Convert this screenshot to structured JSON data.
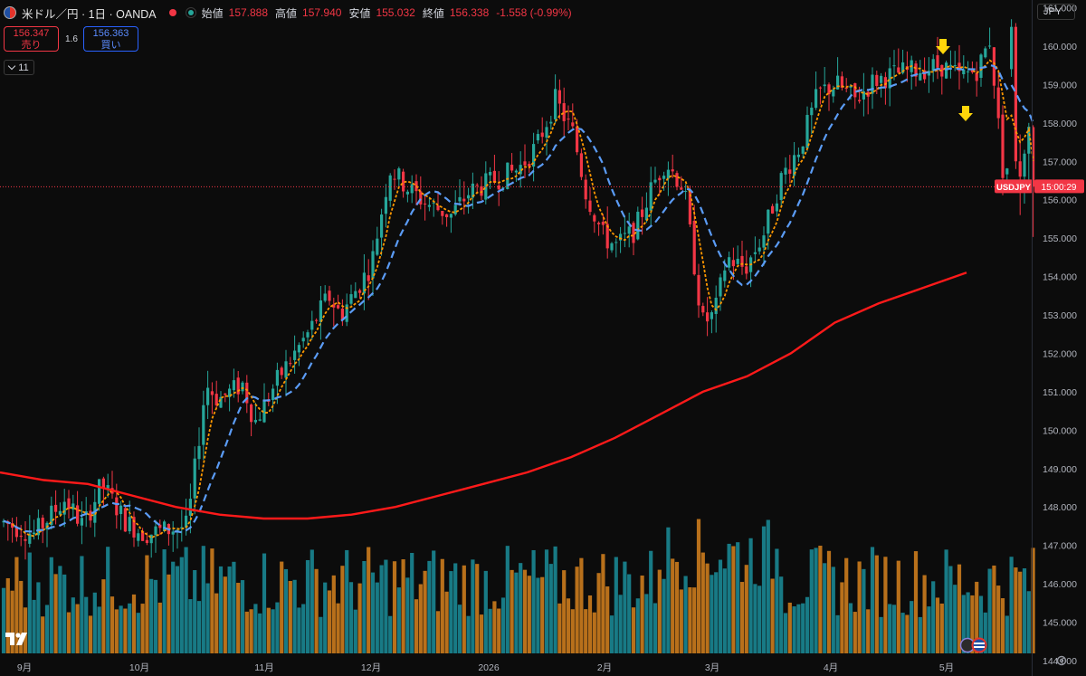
{
  "header": {
    "symbol": "米ドル／円 · 1日 · OANDA",
    "open_label": "始値",
    "open_value": "157.888",
    "high_label": "高値",
    "high_value": "157.940",
    "low_label": "安値",
    "low_value": "155.032",
    "close_label": "終値",
    "close_value": "156.338",
    "change": "-1.558 (-0.99%)"
  },
  "trade": {
    "sell_price": "156.347",
    "sell_label": "売り",
    "spread": "1.6",
    "buy_price": "156.363",
    "buy_label": "買い"
  },
  "indicators_toggle": "11",
  "currency": "JPY",
  "price_label": {
    "symbol": "USDJPY",
    "countdown": "15:00:29"
  },
  "icons": [
    "flag-icon",
    "tradingview-logo-icon",
    "gear-icon",
    "arrow-down-icon",
    "chevron-down-icon",
    "event-flag-icon"
  ],
  "colors": {
    "up": "#26a69a",
    "down": "#f23645",
    "ma_short": "#ff9800",
    "ma_mid": "#5b9cf6",
    "ma_long": "#ff1a1a",
    "vol_up": "#187a85",
    "vol_down": "#b8701b",
    "arrow": "#ffd60a"
  },
  "chart_data": {
    "type": "candlestick",
    "pair": "USDJPY",
    "y_ticks": [
      "161.000",
      "160.000",
      "159.000",
      "158.000",
      "157.000",
      "156.000",
      "155.000",
      "154.000",
      "153.000",
      "152.000",
      "151.000",
      "150.000",
      "149.000",
      "148.000",
      "147.000",
      "146.000",
      "145.000",
      "144.000"
    ],
    "ylim": [
      144,
      161.2
    ],
    "x_ticks": [
      "9月",
      "10月",
      "11月",
      "12月",
      "2026",
      "2月",
      "3月",
      "4月",
      "5月"
    ],
    "last_price": 156.338,
    "ma_long": [
      148.9,
      148.7,
      148.6,
      148.3,
      148.0,
      147.8,
      147.7,
      147.7,
      147.8,
      148.0,
      148.3,
      148.6,
      148.9,
      149.3,
      149.8,
      150.4,
      151.0,
      151.4,
      152.0,
      152.8,
      153.3,
      153.7,
      154.1
    ],
    "annotations": [
      "arrow-down",
      "arrow-down"
    ]
  }
}
